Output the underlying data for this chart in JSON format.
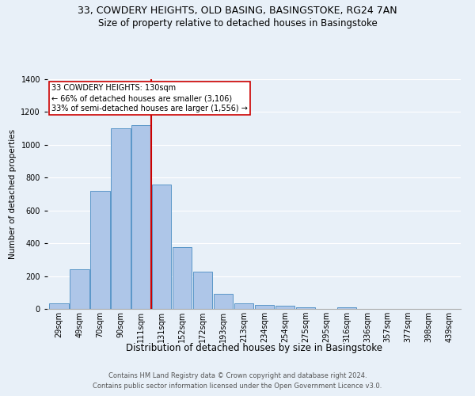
{
  "title": "33, COWDERY HEIGHTS, OLD BASING, BASINGSTOKE, RG24 7AN",
  "subtitle": "Size of property relative to detached houses in Basingstoke",
  "xlabel": "Distribution of detached houses by size in Basingstoke",
  "ylabel": "Number of detached properties",
  "bar_labels": [
    "29sqm",
    "49sqm",
    "70sqm",
    "90sqm",
    "111sqm",
    "131sqm",
    "152sqm",
    "172sqm",
    "193sqm",
    "213sqm",
    "234sqm",
    "254sqm",
    "275sqm",
    "295sqm",
    "316sqm",
    "336sqm",
    "357sqm",
    "377sqm",
    "398sqm",
    "439sqm"
  ],
  "bar_values": [
    35,
    240,
    720,
    1100,
    1120,
    760,
    375,
    225,
    90,
    35,
    25,
    20,
    10,
    0,
    10,
    0,
    0,
    0,
    0,
    0
  ],
  "bar_color": "#aec6e8",
  "bar_edge_color": "#5a96c8",
  "background_color": "#e8f0f8",
  "grid_color": "#ffffff",
  "vline_x_index": 5,
  "vline_color": "#cc0000",
  "annotation_title": "33 COWDERY HEIGHTS: 130sqm",
  "annotation_line1": "← 66% of detached houses are smaller (3,106)",
  "annotation_line2": "33% of semi-detached houses are larger (1,556) →",
  "annotation_box_color": "#ffffff",
  "annotation_border_color": "#cc0000",
  "ylim": [
    0,
    1400
  ],
  "yticks": [
    0,
    200,
    400,
    600,
    800,
    1000,
    1200,
    1400
  ],
  "footnote1": "Contains HM Land Registry data © Crown copyright and database right 2024.",
  "footnote2": "Contains public sector information licensed under the Open Government Licence v3.0.",
  "title_fontsize": 9,
  "subtitle_fontsize": 8.5,
  "xlabel_fontsize": 8.5,
  "ylabel_fontsize": 7.5,
  "tick_fontsize": 7,
  "annotation_fontsize": 7,
  "footnote_fontsize": 6
}
